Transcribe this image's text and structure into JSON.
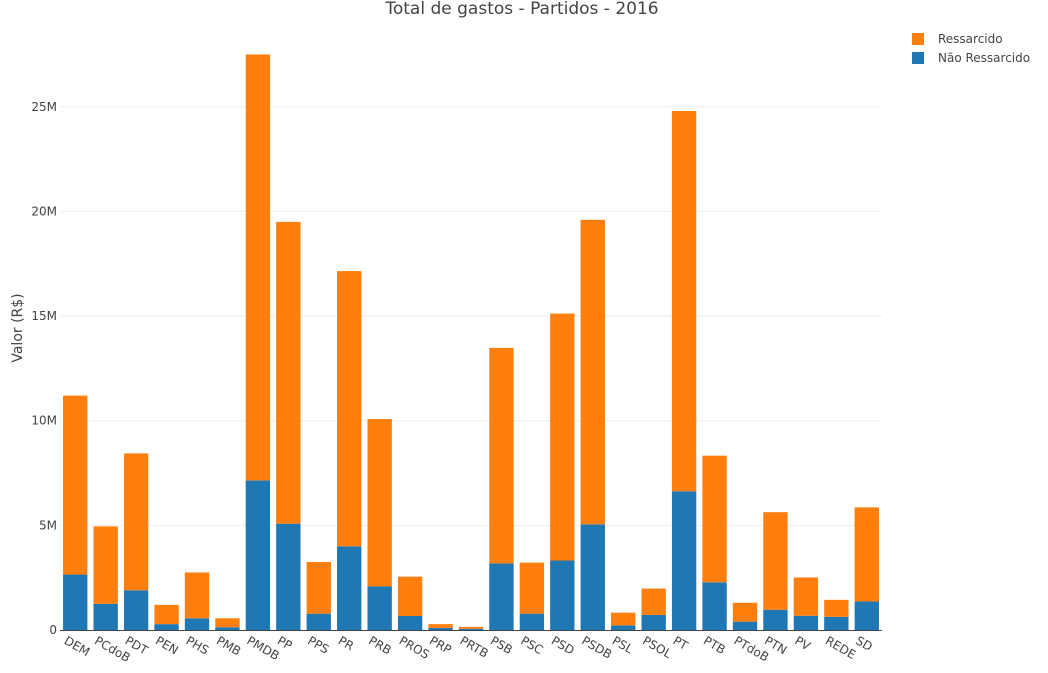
{
  "chart_data": {
    "type": "bar",
    "barmode": "stack",
    "title": "Total de gastos - Partidos - 2016",
    "xlabel": "",
    "ylabel": "Valor (R$)",
    "ylim": [
      0,
      28000000
    ],
    "yticks": [
      0,
      5000000,
      10000000,
      15000000,
      20000000,
      25000000
    ],
    "ytick_labels": [
      "0",
      "5M",
      "10M",
      "15M",
      "20M",
      "25M"
    ],
    "grid": true,
    "legend_position": "top-right",
    "categories": [
      "DEM",
      "PCdoB",
      "PDT",
      "PEN",
      "PHS",
      "PMB",
      "PMDB",
      "PP",
      "PPS",
      "PR",
      "PRB",
      "PROS",
      "PRP",
      "PRTB",
      "PSB",
      "PSC",
      "PSD",
      "PSDB",
      "PSL",
      "PSOL",
      "PT",
      "PTB",
      "PTdoB",
      "PTN",
      "PV",
      "REDE",
      "SD"
    ],
    "series": [
      {
        "name": "Não Ressarcido",
        "color": "#1f77b4",
        "values": [
          2650000,
          1250000,
          1900000,
          280000,
          560000,
          130000,
          7150000,
          5080000,
          780000,
          4000000,
          2080000,
          670000,
          100000,
          60000,
          3180000,
          780000,
          3320000,
          5050000,
          220000,
          720000,
          6630000,
          2280000,
          400000,
          970000,
          680000,
          630000,
          1360000
        ]
      },
      {
        "name": "Ressarcido",
        "color": "#ff7f0e",
        "values": [
          8550000,
          3700000,
          6540000,
          920000,
          2190000,
          430000,
          20350000,
          14420000,
          2470000,
          13150000,
          8000000,
          1880000,
          180000,
          90000,
          10300000,
          2440000,
          11800000,
          14550000,
          610000,
          1260000,
          18170000,
          6050000,
          900000,
          4660000,
          1830000,
          810000,
          4500000
        ]
      }
    ]
  }
}
